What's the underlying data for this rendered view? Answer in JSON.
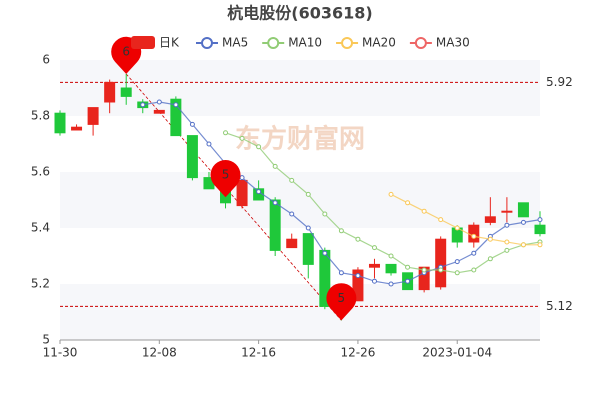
{
  "chart_data": {
    "type": "candlestick",
    "title": "杭电股份(603618)",
    "watermark": "东方财富网",
    "categories": [
      "11-30",
      null,
      null,
      null,
      null,
      null,
      "12-08",
      null,
      null,
      null,
      null,
      null,
      "12-16",
      null,
      null,
      null,
      null,
      null,
      "12-26",
      null,
      null,
      null,
      null,
      null,
      "2023-01-04",
      null,
      null,
      null,
      null,
      null
    ],
    "candles": {
      "name": "日K",
      "color_up": "#e8251d",
      "color_down": "#1fc83a",
      "open": [
        5.81,
        5.75,
        5.77,
        5.85,
        5.9,
        5.85,
        5.81,
        5.86,
        5.73,
        5.58,
        5.56,
        5.48,
        5.54,
        5.5,
        5.33,
        5.38,
        5.32,
        5.14,
        5.14,
        5.26,
        5.27,
        5.24,
        5.18,
        5.19,
        5.4,
        5.35,
        5.42,
        5.46,
        5.49,
        5.41
      ],
      "close": [
        5.74,
        5.76,
        5.83,
        5.92,
        5.87,
        5.83,
        5.82,
        5.73,
        5.58,
        5.54,
        5.49,
        5.57,
        5.5,
        5.32,
        5.36,
        5.27,
        5.12,
        5.13,
        5.25,
        5.27,
        5.24,
        5.18,
        5.26,
        5.36,
        5.35,
        5.41,
        5.44,
        5.46,
        5.44,
        5.38
      ],
      "high": [
        5.82,
        5.77,
        5.83,
        5.93,
        5.95,
        5.86,
        5.82,
        5.87,
        5.73,
        5.6,
        5.57,
        5.58,
        5.57,
        5.51,
        5.38,
        5.38,
        5.33,
        5.16,
        5.26,
        5.29,
        5.27,
        5.24,
        5.26,
        5.37,
        5.41,
        5.42,
        5.51,
        5.51,
        5.49,
        5.46
      ],
      "low": [
        5.73,
        5.75,
        5.73,
        5.81,
        5.84,
        5.81,
        5.81,
        5.73,
        5.57,
        5.54,
        5.47,
        5.47,
        5.5,
        5.3,
        5.33,
        5.22,
        5.11,
        5.07,
        5.14,
        5.22,
        5.23,
        5.18,
        5.17,
        5.18,
        5.33,
        5.33,
        5.41,
        5.42,
        5.44,
        5.37
      ]
    },
    "series": [
      {
        "name": "MA5",
        "color": "#5470c6",
        "values": [
          null,
          null,
          null,
          null,
          null,
          5.84,
          5.85,
          5.84,
          5.77,
          5.7,
          5.63,
          5.58,
          5.53,
          5.49,
          5.45,
          5.4,
          5.31,
          5.24,
          5.23,
          5.21,
          5.2,
          5.21,
          5.24,
          5.26,
          5.28,
          5.31,
          5.37,
          5.41,
          5.42,
          5.43
        ]
      },
      {
        "name": "MA10",
        "color": "#91cc75",
        "values": [
          null,
          null,
          null,
          null,
          null,
          null,
          null,
          null,
          null,
          null,
          5.74,
          5.72,
          5.69,
          5.62,
          5.57,
          5.52,
          5.45,
          5.39,
          5.36,
          5.33,
          5.3,
          5.26,
          5.25,
          5.25,
          5.24,
          5.25,
          5.29,
          5.32,
          5.34,
          5.35
        ]
      },
      {
        "name": "MA20",
        "color": "#fac858",
        "values": [
          null,
          null,
          null,
          null,
          null,
          null,
          null,
          null,
          null,
          null,
          null,
          null,
          null,
          null,
          null,
          null,
          null,
          null,
          null,
          null,
          5.52,
          5.49,
          5.46,
          5.43,
          5.4,
          5.37,
          5.36,
          5.35,
          5.34,
          5.34
        ]
      },
      {
        "name": "MA30",
        "color": "#ee6666",
        "values": [
          null,
          null,
          null,
          null,
          null,
          null,
          null,
          null,
          null,
          null,
          null,
          null,
          null,
          null,
          null,
          null,
          null,
          null,
          null,
          null,
          null,
          null,
          null,
          null,
          null,
          null,
          null,
          null,
          null,
          null
        ]
      }
    ],
    "reference_lines": [
      5.92,
      5.12
    ],
    "annotations": [
      {
        "text": "6",
        "index": 4,
        "value": 5.95
      },
      {
        "text": "5",
        "index": 10,
        "value": 5.51
      },
      {
        "text": "5",
        "index": 17,
        "value": 5.07
      }
    ],
    "ylim": [
      5,
      6
    ],
    "yticks": [
      5,
      5.2,
      5.4,
      5.6,
      5.8,
      6
    ],
    "grid": false
  }
}
